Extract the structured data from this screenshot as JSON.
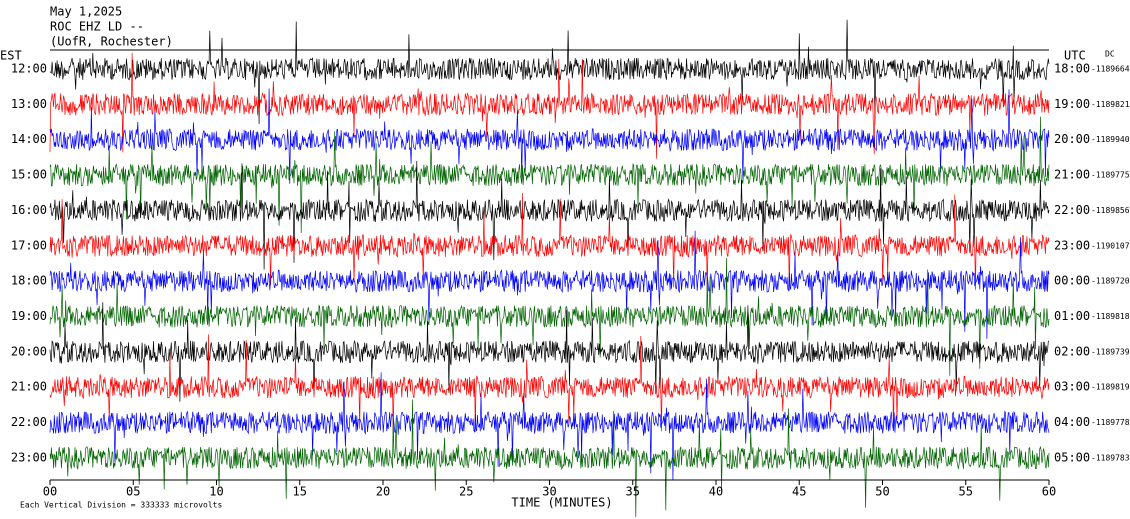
{
  "header": {
    "date": "May 1,2025",
    "station": "ROC EHZ LD --",
    "location": "(UofR, Rochester)"
  },
  "left_axis": {
    "label": "EST",
    "ticks": [
      "12:00",
      "13:00",
      "14:00",
      "15:00",
      "16:00",
      "17:00",
      "18:00",
      "19:00",
      "20:00",
      "21:00",
      "22:00",
      "23:00"
    ]
  },
  "right_axis": {
    "label": "UTC",
    "dc_label": "DC",
    "ticks": [
      "18:00",
      "19:00",
      "20:00",
      "21:00",
      "22:00",
      "23:00",
      "00:00",
      "01:00",
      "02:00",
      "03:00",
      "04:00",
      "05:00"
    ],
    "offsets": [
      "-1189664",
      "-1189821",
      "-1189940",
      "-1189775",
      "-1189856",
      "-1190107",
      "-1189720",
      "-1189818",
      "-1189739",
      "-1189819",
      "-1189778",
      "-1189783"
    ]
  },
  "trace_colors": [
    "#000000",
    "#ff0000",
    "#0000ff",
    "#006400"
  ],
  "x_axis": {
    "label": "TIME (MINUTES)",
    "ticks": [
      "00",
      "05",
      "10",
      "15",
      "20",
      "25",
      "30",
      "35",
      "40",
      "45",
      "50",
      "55",
      "60"
    ]
  },
  "footer": "Each Vertical Division =  333333 microvolts"
}
